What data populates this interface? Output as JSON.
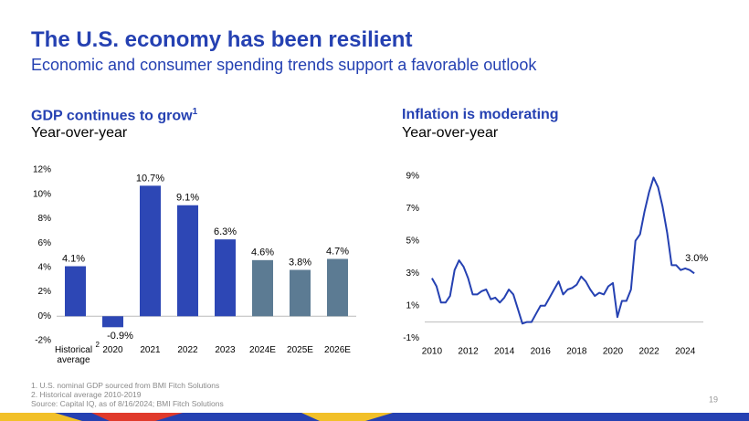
{
  "title": "The U.S. economy has been resilient",
  "subtitle": "Economic and consumer spending trends support a favorable outlook",
  "footnotes": [
    "1. U.S. nominal GDP sourced from BMI Fitch Solutions",
    "2. Historical average 2010-2019",
    "Source: Capital IQ, as of 8/16/2024; BMI Fitch Solutions"
  ],
  "page_number": "19",
  "chart_data": [
    {
      "type": "bar",
      "title": "GDP continues to grow",
      "title_note": "1",
      "subtitle": "Year-over-year",
      "categories": [
        "Historical average",
        "2020",
        "2021",
        "2022",
        "2023",
        "2024E",
        "2025E",
        "2026E"
      ],
      "category_note": "2",
      "values": [
        4.1,
        -0.9,
        10.7,
        9.1,
        6.3,
        4.6,
        3.8,
        4.7
      ],
      "value_labels": [
        "4.1%",
        "-0.9%",
        "10.7%",
        "9.1%",
        "6.3%",
        "4.6%",
        "3.8%",
        "4.7%"
      ],
      "colors": [
        "#2d47b5",
        "#2d47b5",
        "#2d47b5",
        "#2d47b5",
        "#2d47b5",
        "#5c7b93",
        "#5c7b93",
        "#5c7b93"
      ],
      "ylim": [
        -2,
        12
      ],
      "yticks": [
        {
          "value": -2,
          "label": "-2%"
        },
        {
          "value": 0,
          "label": "0%"
        },
        {
          "value": 2,
          "label": "2%"
        },
        {
          "value": 4,
          "label": "4%"
        },
        {
          "value": 6,
          "label": "6%"
        },
        {
          "value": 8,
          "label": "8%"
        },
        {
          "value": 10,
          "label": "10%"
        },
        {
          "value": 12,
          "label": "12%"
        }
      ]
    },
    {
      "type": "line",
      "title": "Inflation is moderating",
      "subtitle": "Year-over-year",
      "color": "#2541b2",
      "x": [
        2010,
        2010.25,
        2010.5,
        2010.75,
        2011,
        2011.25,
        2011.5,
        2011.75,
        2012,
        2012.25,
        2012.5,
        2012.75,
        2013,
        2013.25,
        2013.5,
        2013.75,
        2014,
        2014.25,
        2014.5,
        2014.75,
        2015,
        2015.25,
        2015.5,
        2015.75,
        2016,
        2016.25,
        2016.5,
        2016.75,
        2017,
        2017.25,
        2017.5,
        2017.75,
        2018,
        2018.25,
        2018.5,
        2018.75,
        2019,
        2019.25,
        2019.5,
        2019.75,
        2020,
        2020.25,
        2020.5,
        2020.75,
        2021,
        2021.25,
        2021.5,
        2021.75,
        2022,
        2022.25,
        2022.5,
        2022.75,
        2023,
        2023.25,
        2023.5,
        2023.75,
        2024,
        2024.25,
        2024.5
      ],
      "values": [
        2.7,
        2.2,
        1.2,
        1.2,
        1.6,
        3.2,
        3.8,
        3.4,
        2.7,
        1.7,
        1.7,
        1.9,
        2.0,
        1.4,
        1.5,
        1.2,
        1.5,
        2.0,
        1.7,
        0.8,
        -0.1,
        0.0,
        0.0,
        0.5,
        1.0,
        1.0,
        1.5,
        2.0,
        2.5,
        1.7,
        2.0,
        2.1,
        2.3,
        2.8,
        2.5,
        2.0,
        1.6,
        1.8,
        1.7,
        2.2,
        2.4,
        0.3,
        1.3,
        1.3,
        2.0,
        5.0,
        5.4,
        6.8,
        8.0,
        8.9,
        8.3,
        7.1,
        5.5,
        3.5,
        3.5,
        3.2,
        3.3,
        3.2,
        3.0
      ],
      "annotation": "3.0%",
      "xlim": [
        2009.6,
        2025
      ],
      "xticks": [
        2010,
        2012,
        2014,
        2016,
        2018,
        2020,
        2022,
        2024
      ],
      "ylim": [
        -1.6,
        9.6
      ],
      "yticks": [
        {
          "value": -1,
          "label": "-1%"
        },
        {
          "value": 1,
          "label": "1%"
        },
        {
          "value": 3,
          "label": "3%"
        },
        {
          "value": 5,
          "label": "5%"
        },
        {
          "value": 7,
          "label": "7%"
        },
        {
          "value": 9,
          "label": "9%"
        }
      ]
    }
  ]
}
